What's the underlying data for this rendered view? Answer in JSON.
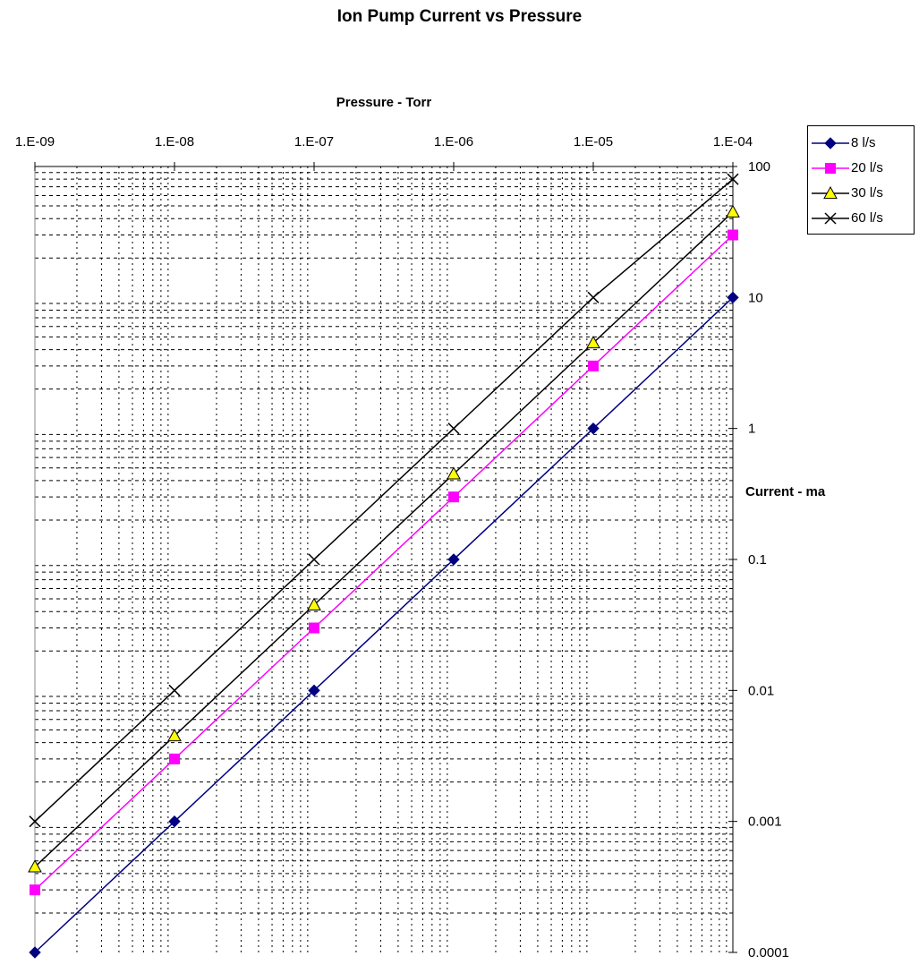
{
  "chart_data": {
    "type": "line",
    "title": "Ion Pump Current vs Pressure",
    "xlabel": "Pressure - Torr",
    "ylabel": "Current - ma",
    "x_scale": "log",
    "y_scale": "log",
    "x_axis_position": "top",
    "y_axis_position": "right",
    "xlim": [
      1e-09,
      0.0001
    ],
    "ylim": [
      0.0001,
      100
    ],
    "x_tick_labels": [
      "1.E-09",
      "1.E-08",
      "1.E-07",
      "1.E-06",
      "1.E-05",
      "1.E-04"
    ],
    "y_tick_labels": [
      "100",
      "10",
      "1",
      "0.1",
      "0.01",
      "0.001",
      "0.0001"
    ],
    "grid": "dotted horizontal minor gridlines",
    "legend_position": "top-right",
    "x": [
      1e-09,
      1e-08,
      1e-07,
      1e-06,
      1e-05,
      0.0001
    ],
    "series": [
      {
        "name": "8 l/s",
        "color": "#000080",
        "marker": "diamond",
        "values": [
          0.0001,
          0.001,
          0.01,
          0.1,
          1,
          10
        ]
      },
      {
        "name": "20 l/s",
        "color": "#ff00ff",
        "marker": "square",
        "values": [
          0.0003,
          0.003,
          0.03,
          0.3,
          3,
          30
        ]
      },
      {
        "name": "30 l/s",
        "color": "#000000",
        "marker": "triangle",
        "values": [
          0.00045,
          0.0045,
          0.045,
          0.45,
          4.5,
          45
        ]
      },
      {
        "name": "60 l/s",
        "color": "#000000",
        "marker": "x",
        "values": [
          0.001,
          0.01,
          0.1,
          1,
          10,
          80
        ]
      }
    ]
  }
}
